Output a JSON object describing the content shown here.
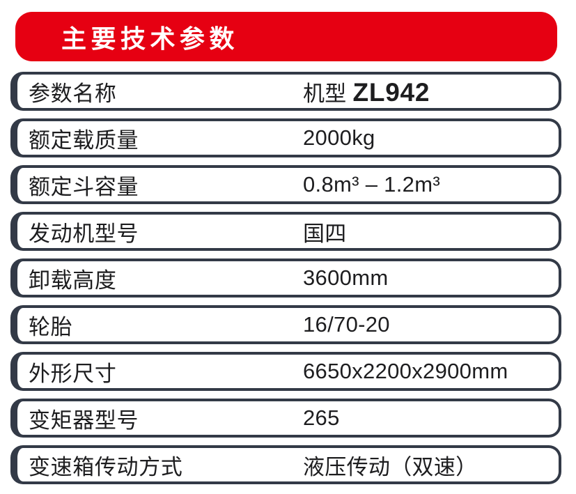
{
  "colors": {
    "accent": "#e60012",
    "border": "#333a47",
    "text": "#1d1d1f"
  },
  "header": {
    "title": "主要技术参数"
  },
  "table": {
    "rows": [
      {
        "label": "参数名称",
        "value_parts": [
          {
            "text": "机型 ",
            "bold": false
          },
          {
            "text": "ZL942",
            "bold": true
          }
        ]
      },
      {
        "label": "额定载质量",
        "value_parts": [
          {
            "text": "2000kg",
            "bold": false
          }
        ]
      },
      {
        "label": "额定斗容量",
        "value_parts": [
          {
            "text": "0.8m³ – 1.2m³",
            "bold": false
          }
        ]
      },
      {
        "label": "发动机型号",
        "value_parts": [
          {
            "text": "国四",
            "bold": false
          }
        ]
      },
      {
        "label": "卸载高度",
        "value_parts": [
          {
            "text": "3600mm",
            "bold": false
          }
        ]
      },
      {
        "label": "轮胎",
        "value_parts": [
          {
            "text": "16/70-20",
            "bold": false
          }
        ]
      },
      {
        "label": "外形尺寸",
        "value_parts": [
          {
            "text": "6650x2200x2900mm",
            "bold": false
          }
        ]
      },
      {
        "label": "变矩器型号",
        "value_parts": [
          {
            "text": "265",
            "bold": false
          }
        ]
      },
      {
        "label": "变速箱传动方式",
        "value_parts": [
          {
            "text": "液压传动（双速）",
            "bold": false
          }
        ]
      }
    ]
  }
}
